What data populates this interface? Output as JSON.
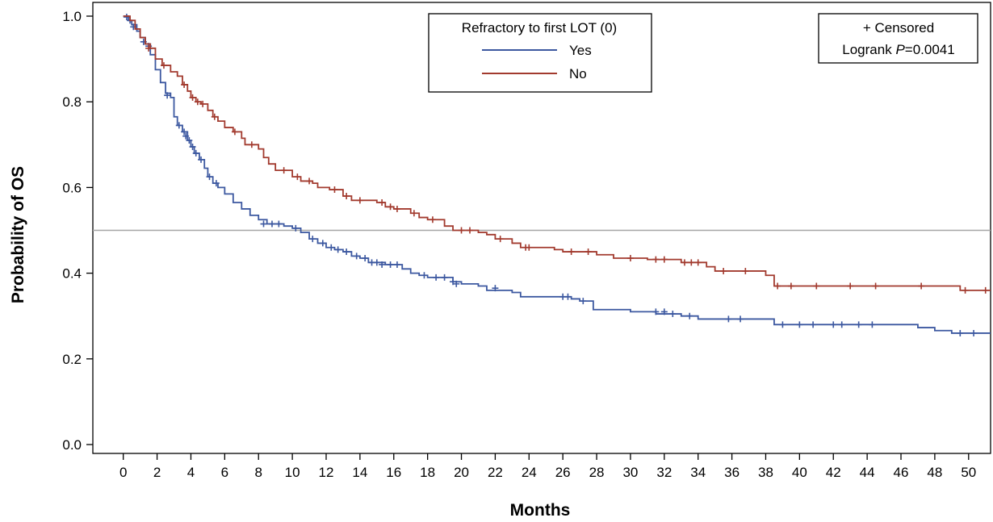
{
  "chart_data": {
    "type": "line",
    "subtype": "kaplan-meier",
    "xlabel": "Months",
    "ylabel": "Probability of OS",
    "xlim": [
      -1.8,
      51.3
    ],
    "ylim": [
      0,
      1.0
    ],
    "xticks": [
      "0",
      "2",
      "4",
      "6",
      "8",
      "10",
      "12",
      "14",
      "16",
      "18",
      "20",
      "22",
      "24",
      "26",
      "28",
      "30",
      "32",
      "34",
      "36",
      "38",
      "40",
      "42",
      "44",
      "46",
      "48",
      "50"
    ],
    "yticks": [
      "0.0",
      "0.2",
      "0.4",
      "0.6",
      "0.8",
      "1.0"
    ],
    "reference_line": {
      "y": 0.5,
      "color": "#a6a6a6"
    },
    "legend": {
      "title": "Refractory to first LOT (0)",
      "position": "top-center",
      "entries": [
        "Yes",
        "No"
      ]
    },
    "annotation": {
      "line1": "+ Censored",
      "line2_prefix": "Logrank ",
      "line2_italic": "P",
      "line2_suffix": "=0.0041",
      "position": "top-right"
    },
    "grid": false,
    "series": [
      {
        "name": "Yes",
        "color": "#3c58a0",
        "steps": [
          [
            0,
            1.0
          ],
          [
            0.3,
            0.99
          ],
          [
            0.5,
            0.98
          ],
          [
            0.8,
            0.965
          ],
          [
            1.0,
            0.95
          ],
          [
            1.3,
            0.935
          ],
          [
            1.6,
            0.91
          ],
          [
            1.9,
            0.875
          ],
          [
            2.2,
            0.845
          ],
          [
            2.5,
            0.82
          ],
          [
            2.8,
            0.81
          ],
          [
            3.0,
            0.765
          ],
          [
            3.2,
            0.745
          ],
          [
            3.5,
            0.73
          ],
          [
            3.8,
            0.71
          ],
          [
            4.0,
            0.695
          ],
          [
            4.2,
            0.68
          ],
          [
            4.5,
            0.665
          ],
          [
            4.8,
            0.645
          ],
          [
            5.0,
            0.625
          ],
          [
            5.3,
            0.61
          ],
          [
            5.6,
            0.6
          ],
          [
            6.0,
            0.585
          ],
          [
            6.5,
            0.565
          ],
          [
            7.0,
            0.55
          ],
          [
            7.5,
            0.535
          ],
          [
            8.0,
            0.525
          ],
          [
            8.5,
            0.515
          ],
          [
            9.5,
            0.51
          ],
          [
            10.0,
            0.505
          ],
          [
            10.5,
            0.495
          ],
          [
            11.0,
            0.48
          ],
          [
            11.5,
            0.47
          ],
          [
            12.0,
            0.46
          ],
          [
            12.5,
            0.455
          ],
          [
            13.0,
            0.45
          ],
          [
            13.5,
            0.44
          ],
          [
            14.0,
            0.435
          ],
          [
            14.5,
            0.425
          ],
          [
            15.5,
            0.42
          ],
          [
            16.5,
            0.41
          ],
          [
            17.0,
            0.4
          ],
          [
            17.5,
            0.395
          ],
          [
            18.0,
            0.39
          ],
          [
            19.5,
            0.38
          ],
          [
            20.0,
            0.375
          ],
          [
            21.0,
            0.37
          ],
          [
            21.5,
            0.36
          ],
          [
            23.0,
            0.355
          ],
          [
            23.5,
            0.345
          ],
          [
            26.5,
            0.34
          ],
          [
            27.0,
            0.335
          ],
          [
            27.8,
            0.315
          ],
          [
            30.0,
            0.31
          ],
          [
            31.5,
            0.305
          ],
          [
            33.0,
            0.3
          ],
          [
            34.0,
            0.293
          ],
          [
            38.5,
            0.28
          ],
          [
            47.0,
            0.273
          ],
          [
            48.0,
            0.266
          ],
          [
            49.0,
            0.26
          ],
          [
            51.3,
            0.26
          ]
        ],
        "censored": [
          [
            0.2,
            0.998
          ],
          [
            0.4,
            0.99
          ],
          [
            0.6,
            0.975
          ],
          [
            1.2,
            0.94
          ],
          [
            1.5,
            0.93
          ],
          [
            2.6,
            0.815
          ],
          [
            3.3,
            0.745
          ],
          [
            3.6,
            0.73
          ],
          [
            3.7,
            0.72
          ],
          [
            3.9,
            0.71
          ],
          [
            4.1,
            0.695
          ],
          [
            4.3,
            0.68
          ],
          [
            4.6,
            0.665
          ],
          [
            5.1,
            0.625
          ],
          [
            5.5,
            0.61
          ],
          [
            8.3,
            0.515
          ],
          [
            8.8,
            0.515
          ],
          [
            9.2,
            0.515
          ],
          [
            10.2,
            0.505
          ],
          [
            11.2,
            0.48
          ],
          [
            11.8,
            0.47
          ],
          [
            12.3,
            0.46
          ],
          [
            12.7,
            0.455
          ],
          [
            13.2,
            0.45
          ],
          [
            13.8,
            0.44
          ],
          [
            14.3,
            0.435
          ],
          [
            14.7,
            0.425
          ],
          [
            15.0,
            0.425
          ],
          [
            15.3,
            0.42
          ],
          [
            15.8,
            0.42
          ],
          [
            16.2,
            0.42
          ],
          [
            17.8,
            0.395
          ],
          [
            18.5,
            0.39
          ],
          [
            19.0,
            0.39
          ],
          [
            19.5,
            0.38
          ],
          [
            19.7,
            0.375
          ],
          [
            22.0,
            0.365
          ],
          [
            26.0,
            0.345
          ],
          [
            26.3,
            0.345
          ],
          [
            27.2,
            0.335
          ],
          [
            31.5,
            0.31
          ],
          [
            32.0,
            0.31
          ],
          [
            32.5,
            0.305
          ],
          [
            33.5,
            0.3
          ],
          [
            35.8,
            0.293
          ],
          [
            36.5,
            0.293
          ],
          [
            39.0,
            0.28
          ],
          [
            40.0,
            0.28
          ],
          [
            40.8,
            0.28
          ],
          [
            42.0,
            0.28
          ],
          [
            42.5,
            0.28
          ],
          [
            43.5,
            0.28
          ],
          [
            44.3,
            0.28
          ],
          [
            49.5,
            0.26
          ],
          [
            50.3,
            0.26
          ]
        ]
      },
      {
        "name": "No",
        "color": "#a23a2e",
        "steps": [
          [
            0,
            1.0
          ],
          [
            0.4,
            0.99
          ],
          [
            0.7,
            0.97
          ],
          [
            1.0,
            0.95
          ],
          [
            1.3,
            0.935
          ],
          [
            1.6,
            0.925
          ],
          [
            1.9,
            0.9
          ],
          [
            2.3,
            0.885
          ],
          [
            2.8,
            0.87
          ],
          [
            3.2,
            0.86
          ],
          [
            3.5,
            0.84
          ],
          [
            3.8,
            0.825
          ],
          [
            4.0,
            0.81
          ],
          [
            4.3,
            0.8
          ],
          [
            4.6,
            0.795
          ],
          [
            5.0,
            0.78
          ],
          [
            5.3,
            0.765
          ],
          [
            5.6,
            0.755
          ],
          [
            6.0,
            0.74
          ],
          [
            6.5,
            0.73
          ],
          [
            7.0,
            0.715
          ],
          [
            7.2,
            0.7
          ],
          [
            8.0,
            0.69
          ],
          [
            8.3,
            0.67
          ],
          [
            8.6,
            0.655
          ],
          [
            9.0,
            0.64
          ],
          [
            10.0,
            0.625
          ],
          [
            10.5,
            0.615
          ],
          [
            11.2,
            0.61
          ],
          [
            11.5,
            0.6
          ],
          [
            12.2,
            0.595
          ],
          [
            13.0,
            0.58
          ],
          [
            13.5,
            0.57
          ],
          [
            15.0,
            0.565
          ],
          [
            15.5,
            0.555
          ],
          [
            16.0,
            0.55
          ],
          [
            17.0,
            0.54
          ],
          [
            17.5,
            0.53
          ],
          [
            18.0,
            0.525
          ],
          [
            19.0,
            0.51
          ],
          [
            19.5,
            0.5
          ],
          [
            21.0,
            0.495
          ],
          [
            21.5,
            0.49
          ],
          [
            22.0,
            0.48
          ],
          [
            23.0,
            0.47
          ],
          [
            23.5,
            0.46
          ],
          [
            25.5,
            0.455
          ],
          [
            26.0,
            0.45
          ],
          [
            28.0,
            0.443
          ],
          [
            29.0,
            0.435
          ],
          [
            31.0,
            0.432
          ],
          [
            33.0,
            0.425
          ],
          [
            34.5,
            0.415
          ],
          [
            35.0,
            0.405
          ],
          [
            38.0,
            0.395
          ],
          [
            38.5,
            0.37
          ],
          [
            49.5,
            0.36
          ],
          [
            51.3,
            0.36
          ]
        ],
        "censored": [
          [
            1.5,
            0.925
          ],
          [
            2.4,
            0.885
          ],
          [
            3.6,
            0.84
          ],
          [
            4.1,
            0.81
          ],
          [
            4.4,
            0.8
          ],
          [
            4.7,
            0.795
          ],
          [
            5.4,
            0.765
          ],
          [
            6.6,
            0.73
          ],
          [
            7.6,
            0.7
          ],
          [
            9.5,
            0.64
          ],
          [
            10.3,
            0.625
          ],
          [
            11.0,
            0.615
          ],
          [
            12.5,
            0.595
          ],
          [
            13.2,
            0.58
          ],
          [
            14.0,
            0.57
          ],
          [
            15.3,
            0.565
          ],
          [
            15.8,
            0.555
          ],
          [
            16.2,
            0.55
          ],
          [
            17.2,
            0.54
          ],
          [
            18.3,
            0.525
          ],
          [
            20.0,
            0.5
          ],
          [
            20.5,
            0.5
          ],
          [
            22.3,
            0.48
          ],
          [
            23.8,
            0.46
          ],
          [
            24.0,
            0.46
          ],
          [
            26.5,
            0.45
          ],
          [
            27.5,
            0.45
          ],
          [
            30.0,
            0.435
          ],
          [
            31.5,
            0.432
          ],
          [
            32.0,
            0.432
          ],
          [
            33.2,
            0.425
          ],
          [
            33.6,
            0.425
          ],
          [
            34.0,
            0.425
          ],
          [
            35.5,
            0.405
          ],
          [
            36.8,
            0.405
          ],
          [
            38.7,
            0.37
          ],
          [
            39.5,
            0.37
          ],
          [
            41.0,
            0.37
          ],
          [
            43.0,
            0.37
          ],
          [
            44.5,
            0.37
          ],
          [
            47.2,
            0.37
          ],
          [
            49.8,
            0.36
          ],
          [
            51.0,
            0.36
          ]
        ]
      }
    ]
  }
}
